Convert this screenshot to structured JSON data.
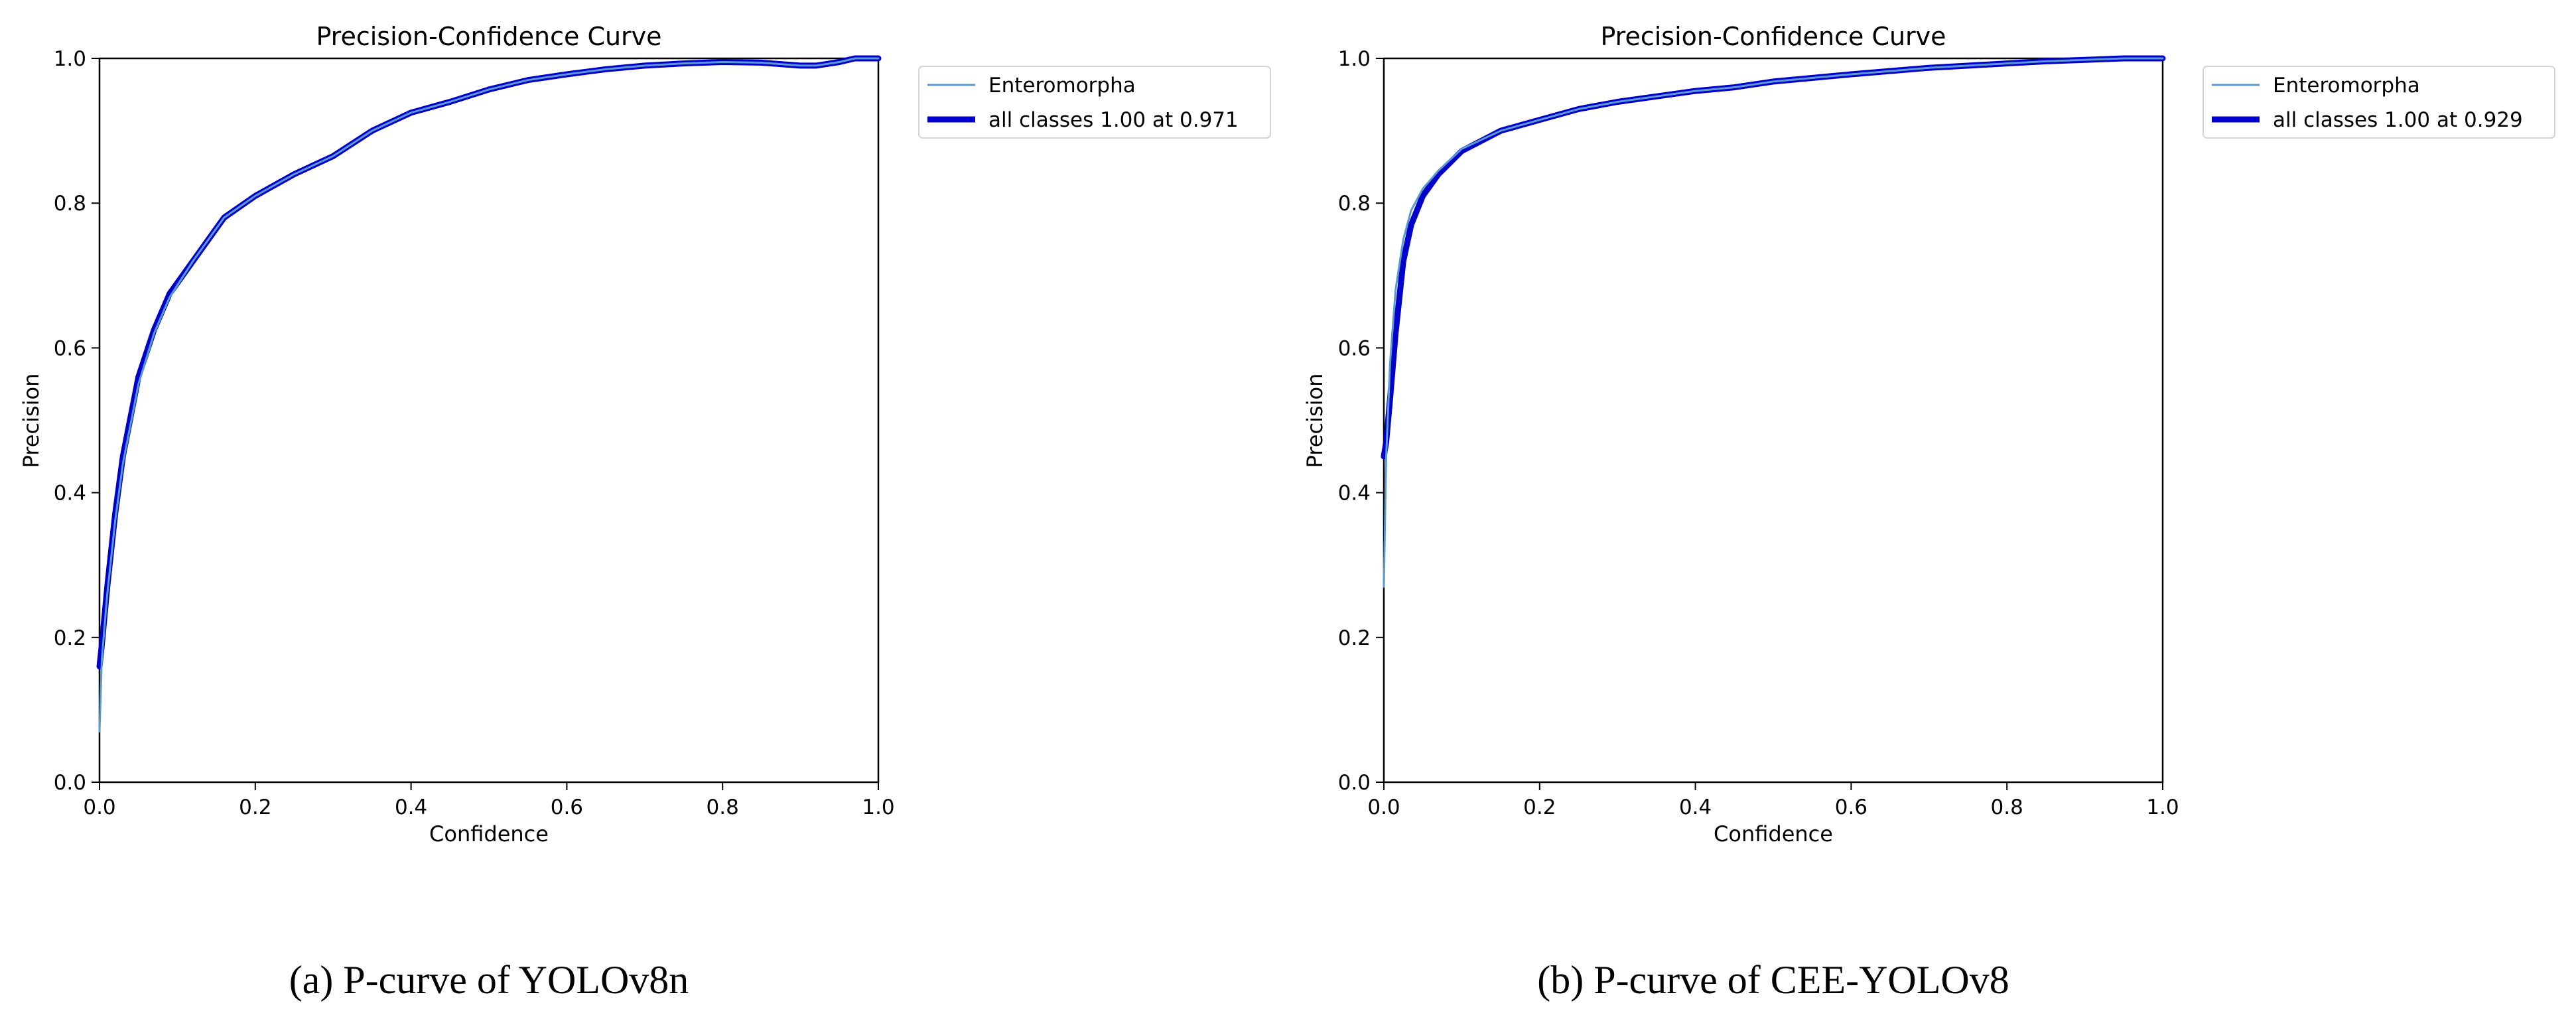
{
  "chart_data": [
    {
      "type": "line",
      "title": "Precision-Confidence Curve",
      "xlabel": "Confidence",
      "ylabel": "Precision",
      "xlim": [
        0,
        1
      ],
      "ylim": [
        0,
        1
      ],
      "xticks": [
        "0.0",
        "0.2",
        "0.4",
        "0.6",
        "0.8",
        "1.0"
      ],
      "yticks": [
        "0.0",
        "0.2",
        "0.4",
        "0.6",
        "0.8",
        "1.0"
      ],
      "grid": false,
      "legend_position": "outside-upper-right",
      "caption": "(a) P-curve of YOLOv8n",
      "series": [
        {
          "name": "Enteromorpha",
          "color": "#5b9bd5",
          "x": [
            0,
            0.003,
            0.01,
            0.02,
            0.03,
            0.05,
            0.07,
            0.09,
            0.12,
            0.16,
            0.2,
            0.25,
            0.3,
            0.35,
            0.4,
            0.45,
            0.5,
            0.55,
            0.6,
            0.65,
            0.7,
            0.75,
            0.8,
            0.85,
            0.9,
            0.92,
            0.95,
            0.97,
            1.0
          ],
          "y": [
            0.07,
            0.17,
            0.26,
            0.36,
            0.44,
            0.55,
            0.62,
            0.67,
            0.72,
            0.78,
            0.81,
            0.84,
            0.865,
            0.9,
            0.925,
            0.94,
            0.957,
            0.97,
            0.978,
            0.985,
            0.99,
            0.993,
            0.995,
            0.994,
            0.99,
            0.99,
            0.995,
            1.0,
            1.0
          ]
        },
        {
          "name": "all classes 1.00 at 0.971",
          "color": "#0000cc",
          "x": [
            0,
            0.003,
            0.01,
            0.02,
            0.03,
            0.05,
            0.07,
            0.09,
            0.12,
            0.16,
            0.2,
            0.25,
            0.3,
            0.35,
            0.4,
            0.45,
            0.5,
            0.55,
            0.6,
            0.65,
            0.7,
            0.75,
            0.8,
            0.85,
            0.9,
            0.92,
            0.95,
            0.97,
            1.0
          ],
          "y": [
            0.16,
            0.19,
            0.27,
            0.37,
            0.45,
            0.56,
            0.625,
            0.675,
            0.72,
            0.78,
            0.81,
            0.84,
            0.865,
            0.9,
            0.925,
            0.94,
            0.957,
            0.97,
            0.978,
            0.985,
            0.99,
            0.993,
            0.995,
            0.994,
            0.99,
            0.99,
            0.995,
            1.0,
            1.0
          ]
        }
      ]
    },
    {
      "type": "line",
      "title": "Precision-Confidence Curve",
      "xlabel": "Confidence",
      "ylabel": "Precision",
      "xlim": [
        0,
        1
      ],
      "ylim": [
        0,
        1
      ],
      "xticks": [
        "0.0",
        "0.2",
        "0.4",
        "0.6",
        "0.8",
        "1.0"
      ],
      "yticks": [
        "0.0",
        "0.2",
        "0.4",
        "0.6",
        "0.8",
        "1.0"
      ],
      "grid": false,
      "legend_position": "outside-upper-right",
      "caption": "(b) P-curve of CEE-YOLOv8",
      "series": [
        {
          "name": "Enteromorpha",
          "color": "#5b9bd5",
          "x": [
            0,
            0.003,
            0.008,
            0.015,
            0.025,
            0.035,
            0.05,
            0.07,
            0.1,
            0.15,
            0.2,
            0.25,
            0.3,
            0.4,
            0.45,
            0.5,
            0.6,
            0.7,
            0.8,
            0.85,
            0.9,
            0.95,
            1.0
          ],
          "y": [
            0.27,
            0.45,
            0.58,
            0.68,
            0.75,
            0.79,
            0.82,
            0.845,
            0.875,
            0.9,
            0.915,
            0.93,
            0.94,
            0.955,
            0.96,
            0.968,
            0.978,
            0.987,
            0.993,
            0.996,
            0.998,
            1.0,
            1.0
          ]
        },
        {
          "name": "all classes 1.00 at 0.929",
          "color": "#0000cc",
          "x": [
            0,
            0.003,
            0.008,
            0.015,
            0.025,
            0.035,
            0.05,
            0.07,
            0.1,
            0.15,
            0.2,
            0.25,
            0.3,
            0.4,
            0.45,
            0.5,
            0.6,
            0.7,
            0.8,
            0.85,
            0.9,
            0.95,
            1.0
          ],
          "y": [
            0.45,
            0.47,
            0.53,
            0.62,
            0.72,
            0.77,
            0.81,
            0.84,
            0.872,
            0.9,
            0.915,
            0.93,
            0.94,
            0.955,
            0.96,
            0.968,
            0.978,
            0.987,
            0.993,
            0.996,
            0.998,
            1.0,
            1.0
          ]
        }
      ]
    }
  ]
}
